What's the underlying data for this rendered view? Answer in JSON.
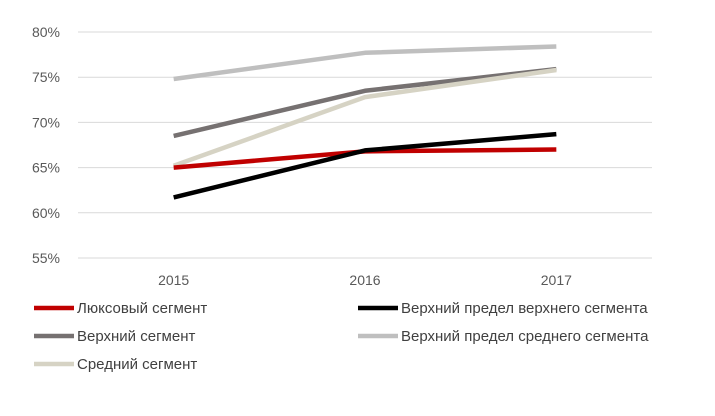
{
  "chart_data": {
    "type": "line",
    "title": "",
    "xlabel": "",
    "ylabel": "",
    "x": [
      "2015",
      "2016",
      "2017"
    ],
    "ylim": [
      55,
      80
    ],
    "yticks": [
      "55%",
      "60%",
      "65%",
      "70%",
      "75%",
      "80%"
    ],
    "ytick_values": [
      55,
      60,
      65,
      70,
      75,
      80
    ],
    "grid": "horizontal",
    "legend_position": "bottom",
    "series": [
      {
        "name": "Люксовый сегмент",
        "color": "#c00000",
        "values": [
          65.0,
          66.8,
          67.0
        ]
      },
      {
        "name": "Верхний предел верхнего сегмента",
        "color": "#000000",
        "values": [
          61.7,
          66.9,
          68.7
        ]
      },
      {
        "name": "Верхний сегмент",
        "color": "#767171",
        "values": [
          68.5,
          73.5,
          75.9
        ]
      },
      {
        "name": "Верхний предел среднего сегмента",
        "color": "#bfbfbf",
        "values": [
          74.8,
          77.7,
          78.4
        ]
      },
      {
        "name": "Средний сегмент",
        "color": "#d6d3c4",
        "values": [
          65.2,
          72.8,
          75.8
        ]
      }
    ]
  }
}
